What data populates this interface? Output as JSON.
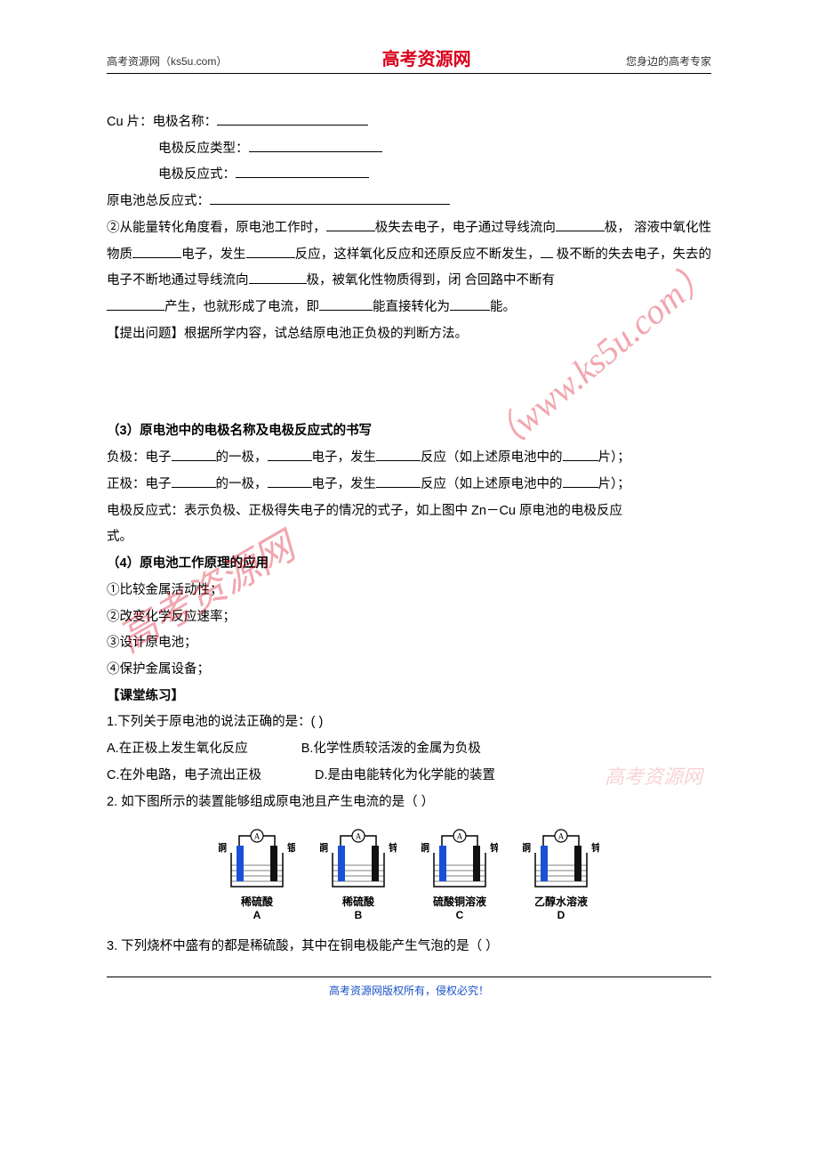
{
  "header": {
    "left": "高考资源网（ks5u.com）",
    "center": "高考资源网",
    "right": "您身边的高考专家"
  },
  "watermarks": {
    "url": "（www.ks5u.com）",
    "cn": "高考资源网",
    "small": "高考资源网"
  },
  "body": {
    "cu_line": "Cu 片：电极名称：",
    "cu_type": "电极反应类型：",
    "cu_eq": "电极反应式：",
    "total_eq": "原电池总反应式：",
    "p2a": "②从能量转化角度看，原电池工作时，",
    "p2b": "极失去电子，电子通过导线流向",
    "p2c": "极，",
    "p2d": "溶液中氧化性物质",
    "p2e": "电子，发生",
    "p2f": "反应，这样氧化反应和还原反应不断发生，",
    "p2f2": "",
    "p2g": "极不断的失去电子，失去的电子不断地通过导线流向",
    "p2h": "极，被氧化性物质得到，闭",
    "p2i": "合回路中不断有",
    "p2j": "产生，也就形成了电流，即",
    "p2k": "能直接转化为",
    "p2l": "能。",
    "question_raise": "【提出问题】根据所学内容，试总结原电池正负极的判断方法。",
    "sec3_title": "（3）原电池中的电极名称及电极反应式的书写",
    "neg_a": "负极：电子",
    "neg_b": "的一极，",
    "neg_c": "电子，发生",
    "neg_d": "反应（如上述原电池中的",
    "neg_e": "片）；",
    "pos_a": "正极：电子",
    "pos_b": "的一极，",
    "pos_c": "电子，发生",
    "pos_d": "反应（如上述原电池中的",
    "pos_e": "片）；",
    "eq_desc_a": "电极反应式：表示负极、正极得失电子的情况的式子，如上图中 Zn－Cu 原电池的电极反应",
    "eq_desc_b": "式。",
    "sec4_title": "（4）原电池工作原理的应用",
    "app1": "①比较金属活动性；",
    "app2": "②改变化学反应速率；",
    "app3": "③设计原电池；",
    "app4": "④保护金属设备；",
    "practice_title": "【课堂练习】",
    "q1": "1.下列关于原电池的说法正确的是：(   )",
    "q1a": "A.在正极上发生氧化反应",
    "q1b": "B.化学性质较活泼的金属为负极",
    "q1c": "C.在外电路，电子流出正极",
    "q1d": "D.是由电能转化为化学能的装置",
    "q2": "2. 如下图所示的装置能够组成原电池且产生电流的是（  ）",
    "q3": "3. 下列烧杯中盛有的都是稀硫酸，其中在铜电极能产生气泡的是（  ）"
  },
  "cells": [
    {
      "left_label": "铜",
      "right_label": "银",
      "solution": "稀硫酸",
      "letter": "A",
      "left_color": "#1a4fd6",
      "right_color": "#111111"
    },
    {
      "left_label": "铜",
      "right_label": "锌",
      "solution": "稀硫酸",
      "letter": "B",
      "left_color": "#1a4fd6",
      "right_color": "#111111"
    },
    {
      "left_label": "铜",
      "right_label": "锌",
      "solution": "硫酸铜溶液",
      "letter": "C",
      "left_color": "#1a4fd6",
      "right_color": "#111111"
    },
    {
      "left_label": "铜",
      "right_label": "锌",
      "solution": "乙醇水溶液",
      "letter": "D",
      "left_color": "#1a4fd6",
      "right_color": "#111111"
    }
  ],
  "footer": "高考资源网版权所有，侵权必究！",
  "blank_widths": {
    "long": 170,
    "med": 110,
    "short": 60,
    "tiny": 40,
    "xl": 250
  },
  "colors": {
    "red": "#d9001b",
    "blue": "#1a52c7",
    "black": "#000000"
  }
}
